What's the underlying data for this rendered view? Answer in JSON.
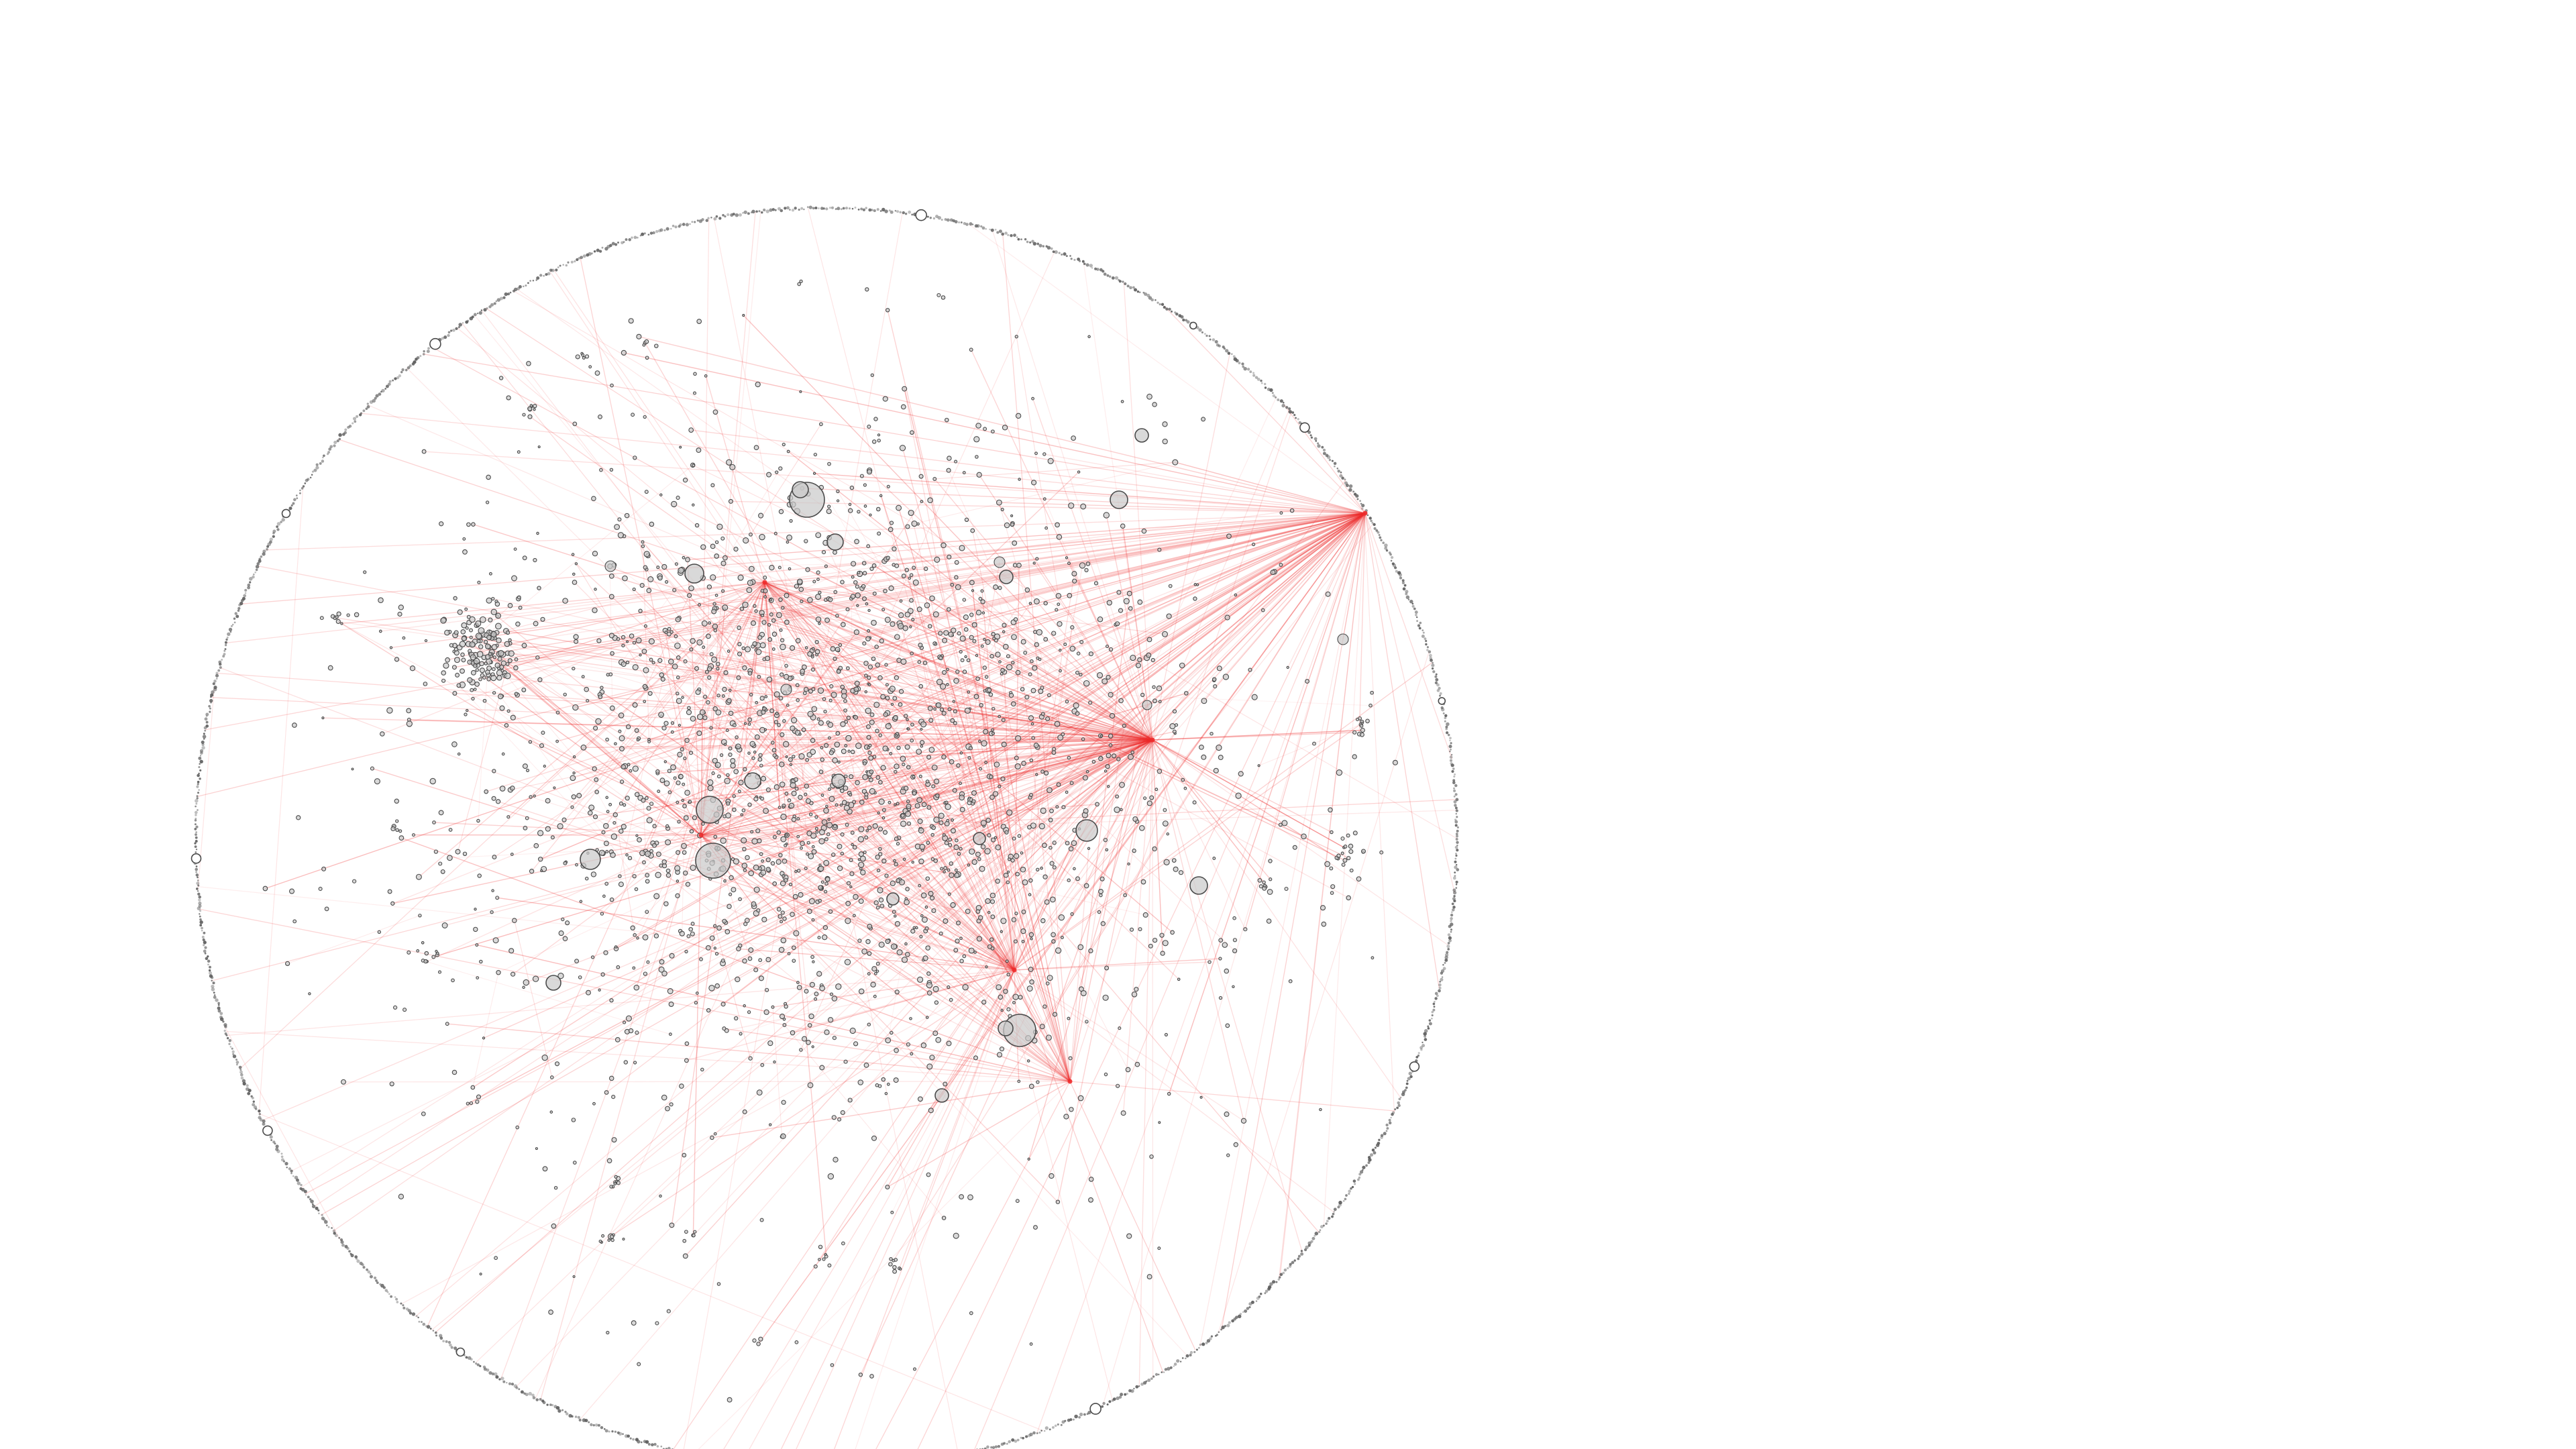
{
  "graph": {
    "kind": "force-directed network",
    "boundary": "circle",
    "colors": {
      "background": "#ffffff",
      "node_fill": "#c9c9c9",
      "node_stroke": "#4a4a4a",
      "edge": "#ee2c2c",
      "boundary": "#555555"
    }
  }
}
